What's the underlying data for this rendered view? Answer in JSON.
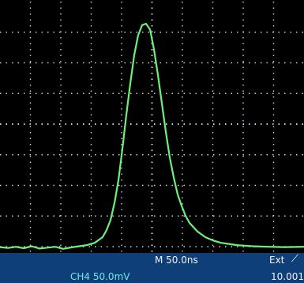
{
  "status_bar": {
    "timebase": "M 50.0ns",
    "trigger_source": "Ext",
    "trigger_slope_icon": "rising-edge-icon",
    "channel_scale": "CH4  50.0mV",
    "trigger_level": "10.001"
  },
  "display": {
    "grid_divisions_x": 10,
    "grid_divisions_y": 8,
    "grid_color": "#c9cfe6",
    "trace_color": "#6df07a",
    "background_color": "#000000",
    "status_bar_color": "#0f3f78",
    "channel_label_color": "#6ee9e6"
  },
  "chart_data": {
    "type": "line",
    "x": [
      0,
      10,
      20,
      30,
      40,
      50,
      60,
      70,
      80,
      90,
      100,
      110,
      120,
      130,
      135,
      140,
      145,
      150,
      155,
      160,
      165,
      170,
      175,
      180,
      185,
      190,
      195,
      200,
      205,
      210,
      215,
      220,
      225,
      230,
      235,
      240,
      250,
      260,
      270,
      280,
      290,
      300,
      310,
      320,
      340,
      360,
      385
    ],
    "y": [
      0.15,
      0.12,
      0.16,
      0.11,
      0.18,
      0.1,
      0.13,
      0.16,
      0.09,
      0.14,
      0.18,
      0.22,
      0.3,
      0.5,
      0.75,
      1.1,
      1.7,
      2.5,
      3.6,
      4.8,
      5.9,
      6.9,
      7.6,
      7.95,
      8.0,
      7.8,
      7.1,
      6.2,
      5.2,
      4.2,
      3.3,
      2.6,
      2.0,
      1.6,
      1.25,
      1.0,
      0.7,
      0.5,
      0.38,
      0.3,
      0.26,
      0.22,
      0.2,
      0.18,
      0.16,
      0.15,
      0.16
    ],
    "xlim": [
      0,
      385
    ],
    "ylim": [
      0,
      8.5
    ],
    "grid": true
  }
}
